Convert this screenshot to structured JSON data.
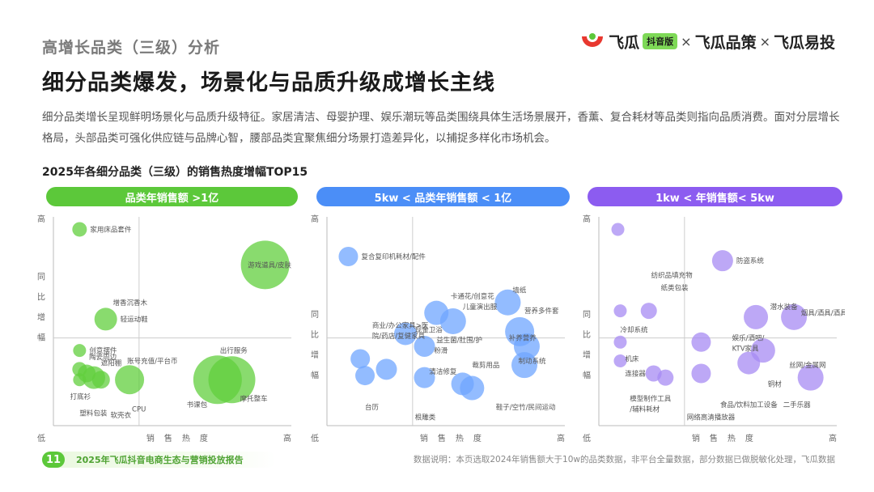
{
  "header": {
    "section_title": "高增长品类（三级）分析",
    "headline": "细分品类爆发，场景化与品质升级成增长主线",
    "description": "细分品类增长呈现鲜明场景化与品质升级特征。家居清洁、母婴护理、娱乐潮玩等品类围绕具体生活场景展开，香薰、复合耗材等品类则指向品质消费。面对分层增长格局，头部品类可强化供应链与品牌心智，腰部品类宜聚焦细分场景打造差异化，以捕捉多样化市场机会。",
    "chart_title": "2025年各细分品类（三级）的销售热度增幅TOP15"
  },
  "brand": {
    "name1": "飞瓜",
    "badge": "抖音版",
    "sep": "×",
    "name2": "飞瓜品策",
    "name3": "飞瓜易投",
    "logo_icon": "feigua-logo-icon",
    "colors": {
      "red": "#e8382f",
      "green": "#5cc83a"
    }
  },
  "chart_data": [
    {
      "type": "scatter",
      "banner": "品类年销售额 >1亿",
      "color": "#62cf3e",
      "banner_color": "#5cc83a",
      "xlabel": "销售热度",
      "ylabel": "同比增幅",
      "x_low": "低",
      "x_high": "高",
      "y_high": "高",
      "xlim": [
        0,
        100
      ],
      "ylim": [
        0,
        100
      ],
      "points": [
        {
          "label": "家用床品套件",
          "x": 11,
          "y": 94,
          "r": 9
        },
        {
          "label": "游戏道具/皮肤",
          "x": 89,
          "y": 77,
          "r": 30
        },
        {
          "label": "增香沉香木",
          "x": 25,
          "y": 59,
          "r": 0
        },
        {
          "label": "轻运动鞋",
          "x": 22,
          "y": 51,
          "r": 14
        },
        {
          "label": "创意摆件",
          "x": 11,
          "y": 36,
          "r": 8
        },
        {
          "label": "陶瓷周边",
          "x": 15,
          "y": 33,
          "r": 0
        },
        {
          "label": "遮阳棚",
          "x": 20,
          "y": 30,
          "r": 0
        },
        {
          "label": "账号充值/平台币",
          "x": 31,
          "y": 31,
          "r": 0
        },
        {
          "label": "出行服务",
          "x": 70,
          "y": 36,
          "r": 0
        },
        {
          "label": "",
          "x": 11,
          "y": 27,
          "r": 9
        },
        {
          "label": "",
          "x": 14,
          "y": 25,
          "r": 11
        },
        {
          "label": "",
          "x": 17,
          "y": 23,
          "r": 14
        },
        {
          "label": "",
          "x": 11,
          "y": 22,
          "r": 8
        },
        {
          "label": "",
          "x": 20,
          "y": 22,
          "r": 11
        },
        {
          "label": "",
          "x": 32,
          "y": 22,
          "r": 18
        },
        {
          "label": "",
          "x": 69,
          "y": 22,
          "r": 30
        },
        {
          "label": "",
          "x": 75,
          "y": 22,
          "r": 29
        },
        {
          "label": "打底衫",
          "x": 7,
          "y": 14,
          "r": 0
        },
        {
          "label": "塑料包装",
          "x": 11,
          "y": 6,
          "r": 0
        },
        {
          "label": "软壳衣",
          "x": 24,
          "y": 5,
          "r": 0
        },
        {
          "label": "CPU",
          "x": 33,
          "y": 8,
          "r": 0
        },
        {
          "label": "书课包",
          "x": 56,
          "y": 10,
          "r": 0
        },
        {
          "label": "摩托整车",
          "x": 90,
          "y": 13,
          "r": 0
        }
      ]
    },
    {
      "type": "scatter",
      "banner": "5kw < 品类年销售额 < 1亿",
      "color": "#6fa6ff",
      "banner_color": "#4b8ef7",
      "xlabel": "销售热度",
      "ylabel": "同比增幅",
      "x_low": "低",
      "x_high": "高",
      "y_high": "高",
      "xlim": [
        0,
        100
      ],
      "ylim": [
        0,
        100
      ],
      "points": [
        {
          "label": "复合复印机耗材/配件",
          "x": 9,
          "y": 81,
          "r": 12
        },
        {
          "label": "卡通花/创意花",
          "x": 52,
          "y": 62,
          "r": 0
        },
        {
          "label": "墙纸",
          "x": 78,
          "y": 65,
          "r": 0
        },
        {
          "label": "儿童演出服",
          "x": 57,
          "y": 57,
          "r": 0
        },
        {
          "label": "营养多件套",
          "x": 83,
          "y": 55,
          "r": 0
        },
        {
          "label": "",
          "x": 46,
          "y": 54,
          "r": 15
        },
        {
          "label": "",
          "x": 53,
          "y": 50,
          "r": 16
        },
        {
          "label": "",
          "x": 76,
          "y": 59,
          "r": 16
        },
        {
          "label": "商业/办公家具>医院/药店/复健家具",
          "x": 19,
          "y": 48,
          "r": 0
        },
        {
          "label": "现金卫浴",
          "x": 37,
          "y": 46,
          "r": 0
        },
        {
          "label": "",
          "x": 33,
          "y": 44,
          "r": 14
        },
        {
          "label": "",
          "x": 81,
          "y": 45,
          "r": 18
        },
        {
          "label": "益生菌/肚围/护",
          "x": 46,
          "y": 41,
          "r": 0
        },
        {
          "label": "",
          "x": 41,
          "y": 38,
          "r": 13
        },
        {
          "label": "补养营养",
          "x": 88,
          "y": 42,
          "r": 0
        },
        {
          "label": "",
          "x": 84,
          "y": 38,
          "r": 16
        },
        {
          "label": "粉滑",
          "x": 45,
          "y": 36,
          "r": 0
        },
        {
          "label": "",
          "x": 14,
          "y": 32,
          "r": 12
        },
        {
          "label": "",
          "x": 25,
          "y": 27,
          "r": 13
        },
        {
          "label": "清洁修复",
          "x": 43,
          "y": 26,
          "r": 0
        },
        {
          "label": "",
          "x": 83,
          "y": 29,
          "r": 16
        },
        {
          "label": "制动系统",
          "x": 92,
          "y": 31,
          "r": 0
        },
        {
          "label": "",
          "x": 16,
          "y": 24,
          "r": 12
        },
        {
          "label": "",
          "x": 41,
          "y": 23,
          "r": 13
        },
        {
          "label": "裁剪用品",
          "x": 61,
          "y": 29,
          "r": 0
        },
        {
          "label": "",
          "x": 57,
          "y": 20,
          "r": 14
        },
        {
          "label": "",
          "x": 61,
          "y": 18,
          "r": 15
        },
        {
          "label": "台历",
          "x": 16,
          "y": 9,
          "r": 0
        },
        {
          "label": "根雕类",
          "x": 37,
          "y": 4,
          "r": 0
        },
        {
          "label": "鞋子/空竹/民间运动",
          "x": 71,
          "y": 9,
          "r": 0
        }
      ]
    },
    {
      "type": "scatter",
      "banner": "1kw < 年销售额< 5kw",
      "color": "#a78bf3",
      "banner_color": "#8c5cf0",
      "xlabel": "销售热度",
      "ylabel": "同比增幅",
      "x_low": "低",
      "x_high": "高",
      "y_high": "高",
      "xlim": [
        0,
        100
      ],
      "ylim": [
        0,
        100
      ],
      "points": [
        {
          "label": "",
          "x": 8,
          "y": 94,
          "r": 8
        },
        {
          "label": "防盗系统",
          "x": 52,
          "y": 79,
          "r": 13
        },
        {
          "label": "纺织品填充物",
          "x": 22,
          "y": 72,
          "r": 0
        },
        {
          "label": "纸类包装",
          "x": 26,
          "y": 66,
          "r": 0
        },
        {
          "label": "",
          "x": 9,
          "y": 55,
          "r": 8
        },
        {
          "label": "",
          "x": 21,
          "y": 55,
          "r": 10
        },
        {
          "label": "潜水装备",
          "x": 72,
          "y": 57,
          "r": 0
        },
        {
          "label": "烟具/酒具/酒具",
          "x": 85,
          "y": 54,
          "r": 0
        },
        {
          "label": "",
          "x": 66,
          "y": 52,
          "r": 15
        },
        {
          "label": "",
          "x": 82,
          "y": 52,
          "r": 16
        },
        {
          "label": "冷却系统",
          "x": 9,
          "y": 46,
          "r": 0
        },
        {
          "label": "娱乐/酒吧/KTV家具",
          "x": 56,
          "y": 42,
          "r": 0
        },
        {
          "label": "",
          "x": 9,
          "y": 40,
          "r": 8
        },
        {
          "label": "",
          "x": 43,
          "y": 40,
          "r": 12
        },
        {
          "label": "",
          "x": 69,
          "y": 36,
          "r": 15
        },
        {
          "label": "机床",
          "x": 11,
          "y": 32,
          "r": 0
        },
        {
          "label": "",
          "x": 9,
          "y": 31,
          "r": 8
        },
        {
          "label": "",
          "x": 63,
          "y": 30,
          "r": 14
        },
        {
          "label": "丝网/金属网",
          "x": 80,
          "y": 29,
          "r": 0
        },
        {
          "label": "连接器",
          "x": 11,
          "y": 25,
          "r": 0
        },
        {
          "label": "",
          "x": 23,
          "y": 25,
          "r": 10
        },
        {
          "label": "",
          "x": 28,
          "y": 23,
          "r": 10
        },
        {
          "label": "",
          "x": 43,
          "y": 25,
          "r": 12
        },
        {
          "label": "",
          "x": 89,
          "y": 23,
          "r": 16
        },
        {
          "label": "铜材",
          "x": 71,
          "y": 20,
          "r": 0
        },
        {
          "label": "模型制作工具/辅料耗材",
          "x": 13,
          "y": 13,
          "r": 0
        },
        {
          "label": "食品/饮料加工设备",
          "x": 51,
          "y": 10,
          "r": 0
        },
        {
          "label": "网络高清播放器",
          "x": 37,
          "y": 4,
          "r": 0
        },
        {
          "label": "二手乐器",
          "x": 89,
          "y": 10,
          "r": 0
        }
      ]
    }
  ],
  "footer": {
    "page_num": "11",
    "report_title": "2025年飞瓜抖音电商生态与营销投放报告",
    "note": "数据说明：本页选取2024年销售额大于10w的品类数据，非平台全量数据，部分数据已做脱敏化处理，飞瓜数据"
  }
}
